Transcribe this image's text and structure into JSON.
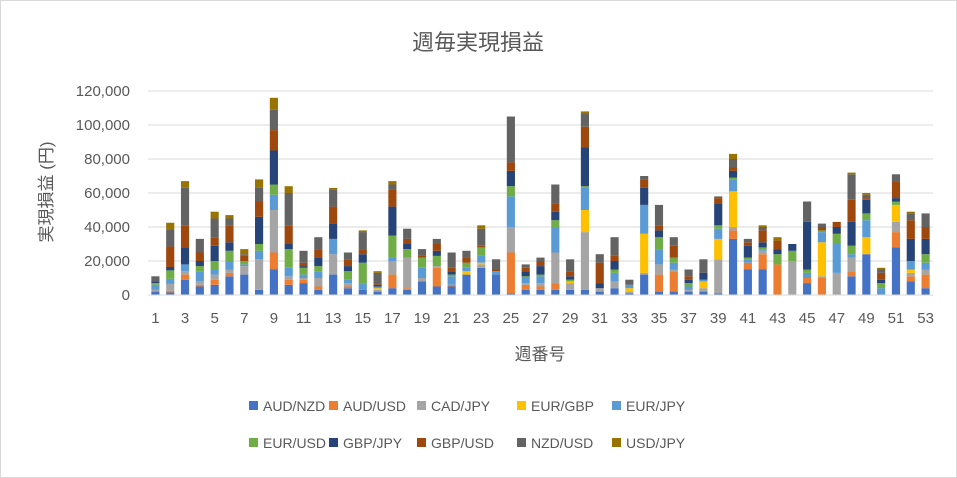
{
  "chart_data": {
    "type": "bar",
    "stacked": true,
    "title": "週毎実現損益",
    "xlabel": "週番号",
    "ylabel": "実現損益 (円)",
    "ylim": [
      0,
      120000
    ],
    "ytick_step": 20000,
    "y_tick_labels": [
      "0",
      "20,000",
      "40,000",
      "60,000",
      "80,000",
      "100,000",
      "120,000"
    ],
    "x_tick_labels": [
      "1",
      "3",
      "5",
      "7",
      "9",
      "11",
      "13",
      "15",
      "17",
      "19",
      "21",
      "23",
      "25",
      "27",
      "29",
      "31",
      "33",
      "35",
      "37",
      "39",
      "41",
      "43",
      "45",
      "47",
      "49",
      "51",
      "53"
    ],
    "grid": true,
    "legend_position": "bottom",
    "categories": [
      1,
      2,
      3,
      4,
      5,
      6,
      7,
      8,
      9,
      10,
      11,
      12,
      13,
      14,
      15,
      16,
      17,
      18,
      19,
      20,
      21,
      22,
      23,
      24,
      25,
      26,
      27,
      28,
      29,
      30,
      31,
      32,
      33,
      34,
      35,
      36,
      37,
      38,
      39,
      40,
      41,
      42,
      43,
      44,
      45,
      46,
      47,
      48,
      49,
      50,
      51,
      52,
      53
    ],
    "series": [
      {
        "name": "AUD/NZD",
        "color": "#4472c4",
        "values": [
          2000,
          1500,
          9000,
          5000,
          6000,
          11000,
          12000,
          3000,
          15000,
          6000,
          7000,
          3000,
          12000,
          4000,
          3000,
          2000,
          4000,
          3000,
          8000,
          5000,
          5000,
          12000,
          16000,
          12000,
          1000,
          3000,
          3000,
          3000,
          3000,
          3000,
          2000,
          4000,
          1000,
          12000,
          2000,
          2000,
          2000,
          2000,
          1000,
          33000,
          15000,
          15000,
          0,
          0,
          7000,
          0,
          0,
          11000,
          24000,
          0,
          28000,
          8000,
          4000
        ]
      },
      {
        "name": "AUD/USD",
        "color": "#ed7d31",
        "values": [
          0,
          1000,
          3000,
          1000,
          3000,
          2000,
          0,
          0,
          10000,
          3000,
          2000,
          2000,
          0,
          1000,
          0,
          0,
          8000,
          1000,
          0,
          11000,
          1000,
          0,
          0,
          0,
          24000,
          3000,
          2000,
          4000,
          0,
          0,
          0,
          0,
          0,
          0,
          10000,
          12000,
          0,
          0,
          0,
          5000,
          4000,
          9000,
          18000,
          0,
          3000,
          10000,
          0,
          3000,
          0,
          0,
          9000,
          3000,
          8000
        ]
      },
      {
        "name": "CAD/JPY",
        "color": "#a5a5a5",
        "values": [
          1000,
          4000,
          2000,
          2000,
          3000,
          2000,
          5000,
          18000,
          25000,
          2000,
          1000,
          5000,
          12000,
          2000,
          0,
          1000,
          8000,
          18000,
          2000,
          1000,
          0,
          0,
          2000,
          0,
          15000,
          1000,
          2000,
          18000,
          4000,
          34000,
          2000,
          4000,
          1000,
          1000,
          6000,
          1000,
          1000,
          2000,
          20000,
          2000,
          0,
          2000,
          0,
          20000,
          0,
          1000,
          13000,
          8000,
          0,
          0,
          6000,
          2000,
          3000
        ]
      },
      {
        "name": "EUR/GBP",
        "color": "#ffc000",
        "values": [
          0,
          0,
          0,
          0,
          0,
          0,
          0,
          0,
          0,
          0,
          0,
          0,
          0,
          0,
          0,
          1000,
          0,
          0,
          0,
          0,
          0,
          2000,
          1000,
          0,
          0,
          0,
          0,
          0,
          1000,
          13000,
          0,
          0,
          2000,
          23000,
          0,
          0,
          0,
          4000,
          12000,
          21000,
          0,
          0,
          0,
          0,
          0,
          20000,
          0,
          0,
          10000,
          0,
          10000,
          2000,
          0
        ]
      },
      {
        "name": "EUR/JPY",
        "color": "#5b9bd5",
        "values": [
          3000,
          3000,
          4000,
          6000,
          3000,
          5000,
          1000,
          5000,
          9000,
          5000,
          2000,
          4000,
          9000,
          2000,
          4000,
          1000,
          2000,
          0,
          6000,
          0,
          5000,
          2000,
          4000,
          2000,
          18000,
          3000,
          4000,
          15000,
          0,
          13000,
          0,
          5000,
          2000,
          17000,
          9000,
          4000,
          2000,
          1000,
          6000,
          7000,
          2000,
          1000,
          0,
          0,
          3000,
          6000,
          17000,
          2000,
          10000,
          4000,
          0,
          5000,
          4000
        ]
      },
      {
        "name": "EUR/USD",
        "color": "#70ad47",
        "values": [
          1000,
          5000,
          0,
          3000,
          5000,
          6000,
          2000,
          4000,
          6000,
          11000,
          4000,
          3000,
          0,
          5000,
          12000,
          0,
          13000,
          5000,
          6000,
          6000,
          1000,
          3000,
          5000,
          0,
          6000,
          1000,
          1000,
          4000,
          1000,
          1000,
          0,
          2000,
          0,
          0,
          7000,
          3000,
          2000,
          0,
          2000,
          1000,
          1000,
          1000,
          6000,
          6000,
          2000,
          1000,
          6000,
          5000,
          4000,
          3000,
          2000,
          0,
          5000
        ]
      },
      {
        "name": "GBP/JPY",
        "color": "#264478",
        "values": [
          1000,
          2000,
          10000,
          3000,
          9000,
          5000,
          0,
          16000,
          20000,
          3000,
          1000,
          5000,
          9000,
          3000,
          5000,
          1000,
          17000,
          3000,
          0,
          3000,
          2000,
          0,
          0,
          0,
          9000,
          3000,
          5000,
          5000,
          2000,
          23000,
          3000,
          5000,
          0,
          10000,
          4000,
          0,
          2000,
          4000,
          13000,
          4000,
          7000,
          3000,
          3000,
          4000,
          28000,
          0,
          4000,
          14000,
          8000,
          2000,
          2000,
          13000,
          9000
        ]
      },
      {
        "name": "GBP/USD",
        "color": "#9e480e",
        "values": [
          0,
          12000,
          13000,
          5000,
          5000,
          10000,
          3000,
          9000,
          12000,
          11000,
          2000,
          5000,
          10000,
          4000,
          3000,
          1000,
          10000,
          3000,
          1000,
          4000,
          2000,
          3000,
          1000,
          1000,
          5000,
          2000,
          3000,
          5000,
          3000,
          12000,
          12000,
          3000,
          0,
          5000,
          3000,
          7000,
          2000,
          0,
          3000,
          2000,
          2000,
          7000,
          5000,
          0,
          0,
          2000,
          3000,
          13000,
          1000,
          4000,
          10000,
          11000,
          7000
        ]
      },
      {
        "name": "NZD/USD",
        "color": "#636363",
        "values": [
          3000,
          10000,
          22000,
          8000,
          11000,
          4000,
          1000,
          8000,
          12000,
          19000,
          7000,
          7000,
          10000,
          4000,
          10000,
          6000,
          3000,
          6000,
          4000,
          3000,
          9000,
          4000,
          10000,
          6000,
          27000,
          2000,
          2000,
          11000,
          7000,
          8000,
          5000,
          11000,
          3000,
          2000,
          12000,
          5000,
          4000,
          8000,
          1000,
          5000,
          2000,
          2000,
          0,
          0,
          12000,
          2000,
          0,
          15000,
          2000,
          2000,
          4000,
          4000,
          8000
        ]
      },
      {
        "name": "USD/JPY",
        "color": "#997300",
        "values": [
          0,
          4000,
          4000,
          0,
          4000,
          2000,
          3000,
          5000,
          7000,
          4000,
          0,
          0,
          1000,
          0,
          1000,
          1000,
          2000,
          0,
          0,
          0,
          0,
          0,
          2000,
          0,
          0,
          0,
          0,
          0,
          0,
          1000,
          0,
          0,
          0,
          0,
          0,
          0,
          0,
          0,
          0,
          3000,
          0,
          1000,
          2000,
          0,
          0,
          0,
          0,
          1000,
          1000,
          1000,
          0,
          1000,
          0
        ]
      }
    ]
  }
}
